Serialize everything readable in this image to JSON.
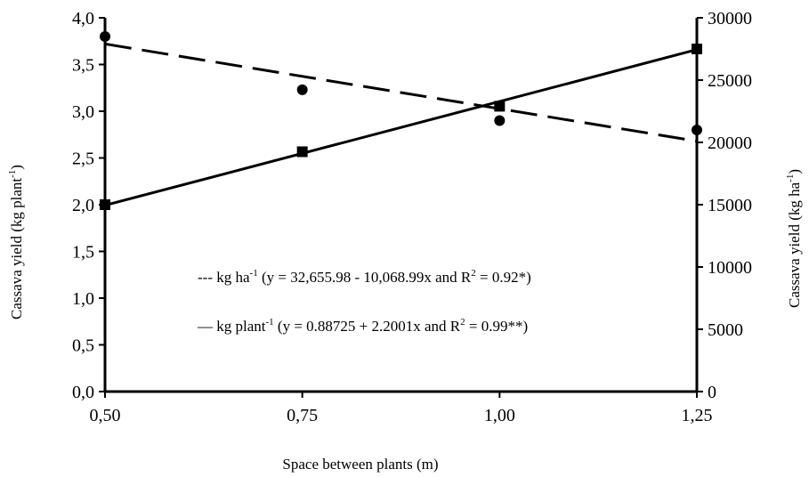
{
  "chart_data": {
    "type": "line",
    "xlabel": "Space between plants (m)",
    "ylabel_left": "Cassava yield (kg plant",
    "ylabel_left_sup": "-1",
    "ylabel_left_end": ")",
    "ylabel_right": "Cassava yield (kg ha",
    "ylabel_right_sup": "-1",
    "ylabel_right_end": ")",
    "x_ticks": [
      "0,50",
      "0,75",
      "1,00",
      "1,25"
    ],
    "x_tick_values": [
      0.5,
      0.75,
      1.0,
      1.25
    ],
    "xlim": [
      0.5,
      1.25
    ],
    "y_left_ticks": [
      "0,0",
      "0,5",
      "1,0",
      "1,5",
      "2,0",
      "2,5",
      "3,0",
      "3,5",
      "4,0"
    ],
    "y_left_tick_values": [
      0,
      0.5,
      1.0,
      1.5,
      2.0,
      2.5,
      3.0,
      3.5,
      4.0
    ],
    "ylim_left": [
      0,
      4
    ],
    "y_right_ticks": [
      "0",
      "5000",
      "10000",
      "15000",
      "20000",
      "25000",
      "30000"
    ],
    "y_right_tick_values": [
      0,
      5000,
      10000,
      15000,
      20000,
      25000,
      30000
    ],
    "ylim_right": [
      0,
      30000
    ],
    "grid": false,
    "series": [
      {
        "name": "kg plant",
        "axis": "right",
        "marker": "square",
        "line_style": "solid",
        "points": [
          {
            "x": 0.5,
            "y": 15000
          },
          {
            "x": 0.75,
            "y": 19250
          },
          {
            "x": 1.0,
            "y": 22900
          },
          {
            "x": 1.25,
            "y": 27500
          }
        ],
        "fit_line": [
          {
            "x": 0.5,
            "y": 14950
          },
          {
            "x": 1.25,
            "y": 27450
          }
        ]
      },
      {
        "name": "kg ha",
        "axis": "left",
        "marker": "circle",
        "line_style": "dashed",
        "points": [
          {
            "x": 0.5,
            "y": 3.8
          },
          {
            "x": 0.75,
            "y": 3.23
          },
          {
            "x": 1.0,
            "y": 2.9
          },
          {
            "x": 1.25,
            "y": 2.8
          }
        ],
        "fit_line": [
          {
            "x": 0.5,
            "y": 3.72
          },
          {
            "x": 1.25,
            "y": 2.68
          }
        ]
      }
    ],
    "legend": {
      "placement": "center",
      "entries": [
        {
          "symbol": "---",
          "label": "kg ha",
          "sup": "-1",
          "text": "(y = 32,655.98 - 10,068.99x and R",
          "r_sup": "2",
          "end": " = 0.92*)"
        },
        {
          "symbol": "—",
          "label": "kg plant",
          "sup": "-1",
          "text": "(y = 0.88725 + 2.2001x and R",
          "r_sup": "2",
          "end": " = 0.99**)"
        }
      ]
    }
  }
}
